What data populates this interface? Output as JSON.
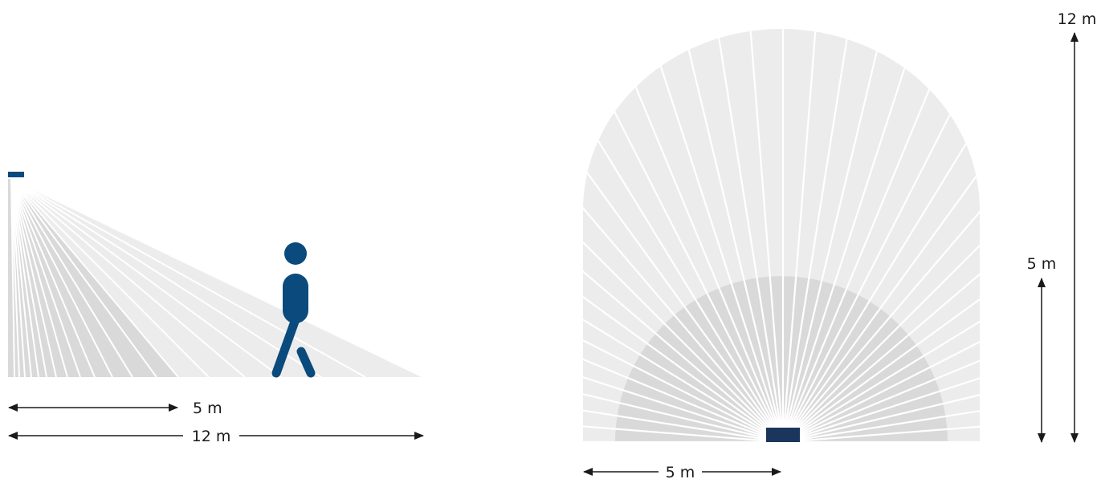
{
  "side_view": {
    "range_short_label": "5 m",
    "range_long_label": "12 m"
  },
  "top_view": {
    "width_label": "5 m",
    "range_short_label": "5 m",
    "range_long_label": "12 m"
  },
  "colors": {
    "sensor": "#1b365d",
    "sensor_side": "#0a4a7c",
    "person": "#0a4a7c",
    "outer_zone": "#ececec",
    "inner_zone": "#d9d9da",
    "ray_line": "#ffffff",
    "arrow": "#1a1a1a"
  }
}
